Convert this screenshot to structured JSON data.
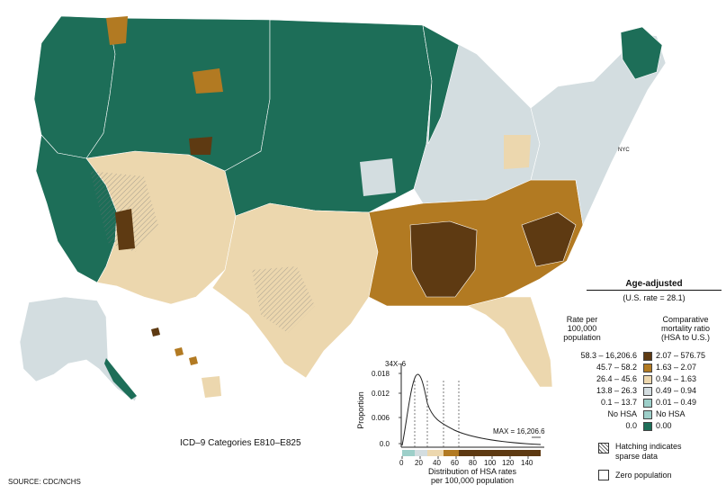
{
  "map": {
    "nyc_label": "NYC"
  },
  "legend": {
    "title": "Age-adjusted",
    "us_rate": "(U.S. rate = 28.1)",
    "rate_header": "Rate per\n100,000\npopulation",
    "ratio_header": "Comparative\nmortality ratio\n(HSA to U.S.)",
    "rows": [
      {
        "rate": "58.3 – 16,206.6",
        "ratio": "2.07 – 576.75",
        "color": "#5e3a12"
      },
      {
        "rate": "45.7 –      58.2",
        "ratio": "1.63 –     2.07",
        "color": "#b27a22"
      },
      {
        "rate": "26.4 –      45.6",
        "ratio": "0.94 –     1.63",
        "color": "#ecd7ae"
      },
      {
        "rate": "13.8 –      26.3",
        "ratio": "0.49 –     0.94",
        "color": "#d3dde0"
      },
      {
        "rate": "0.1 –      13.7",
        "ratio": "0.01 –     0.49",
        "color": "#9dcfc9"
      },
      {
        "rate": "No HSA",
        "ratio": "No HSA",
        "color": "#9dcfc9"
      },
      {
        "rate": "0.0",
        "ratio": "0.00",
        "color": "#1d6e58"
      }
    ],
    "hatch_note": "Hatching indicates\nsparse data",
    "zero_note": "Zero population"
  },
  "histogram": {
    "y_title": "Proportion",
    "y_top_label": "34X–6",
    "y_ticks": [
      "0.018",
      "0.012",
      "0.006",
      "0.0"
    ],
    "x_ticks": [
      "0",
      "20",
      "40",
      "60",
      "80",
      "100",
      "120",
      "140"
    ],
    "x_title": "Distribution of HSA rates\nper 100,000 population",
    "max_label": "MAX = 16,206.6"
  },
  "footer": {
    "icd": "ICD–9 Categories E810–E825",
    "source": "SOURCE:  CDC/NCHS"
  },
  "colors": {
    "very_high": "#5e3a12",
    "high": "#b27a22",
    "mid_high": "#ecd7ae",
    "mid_low": "#d3dde0",
    "low": "#9dcfc9",
    "zero": "#1d6e58"
  }
}
